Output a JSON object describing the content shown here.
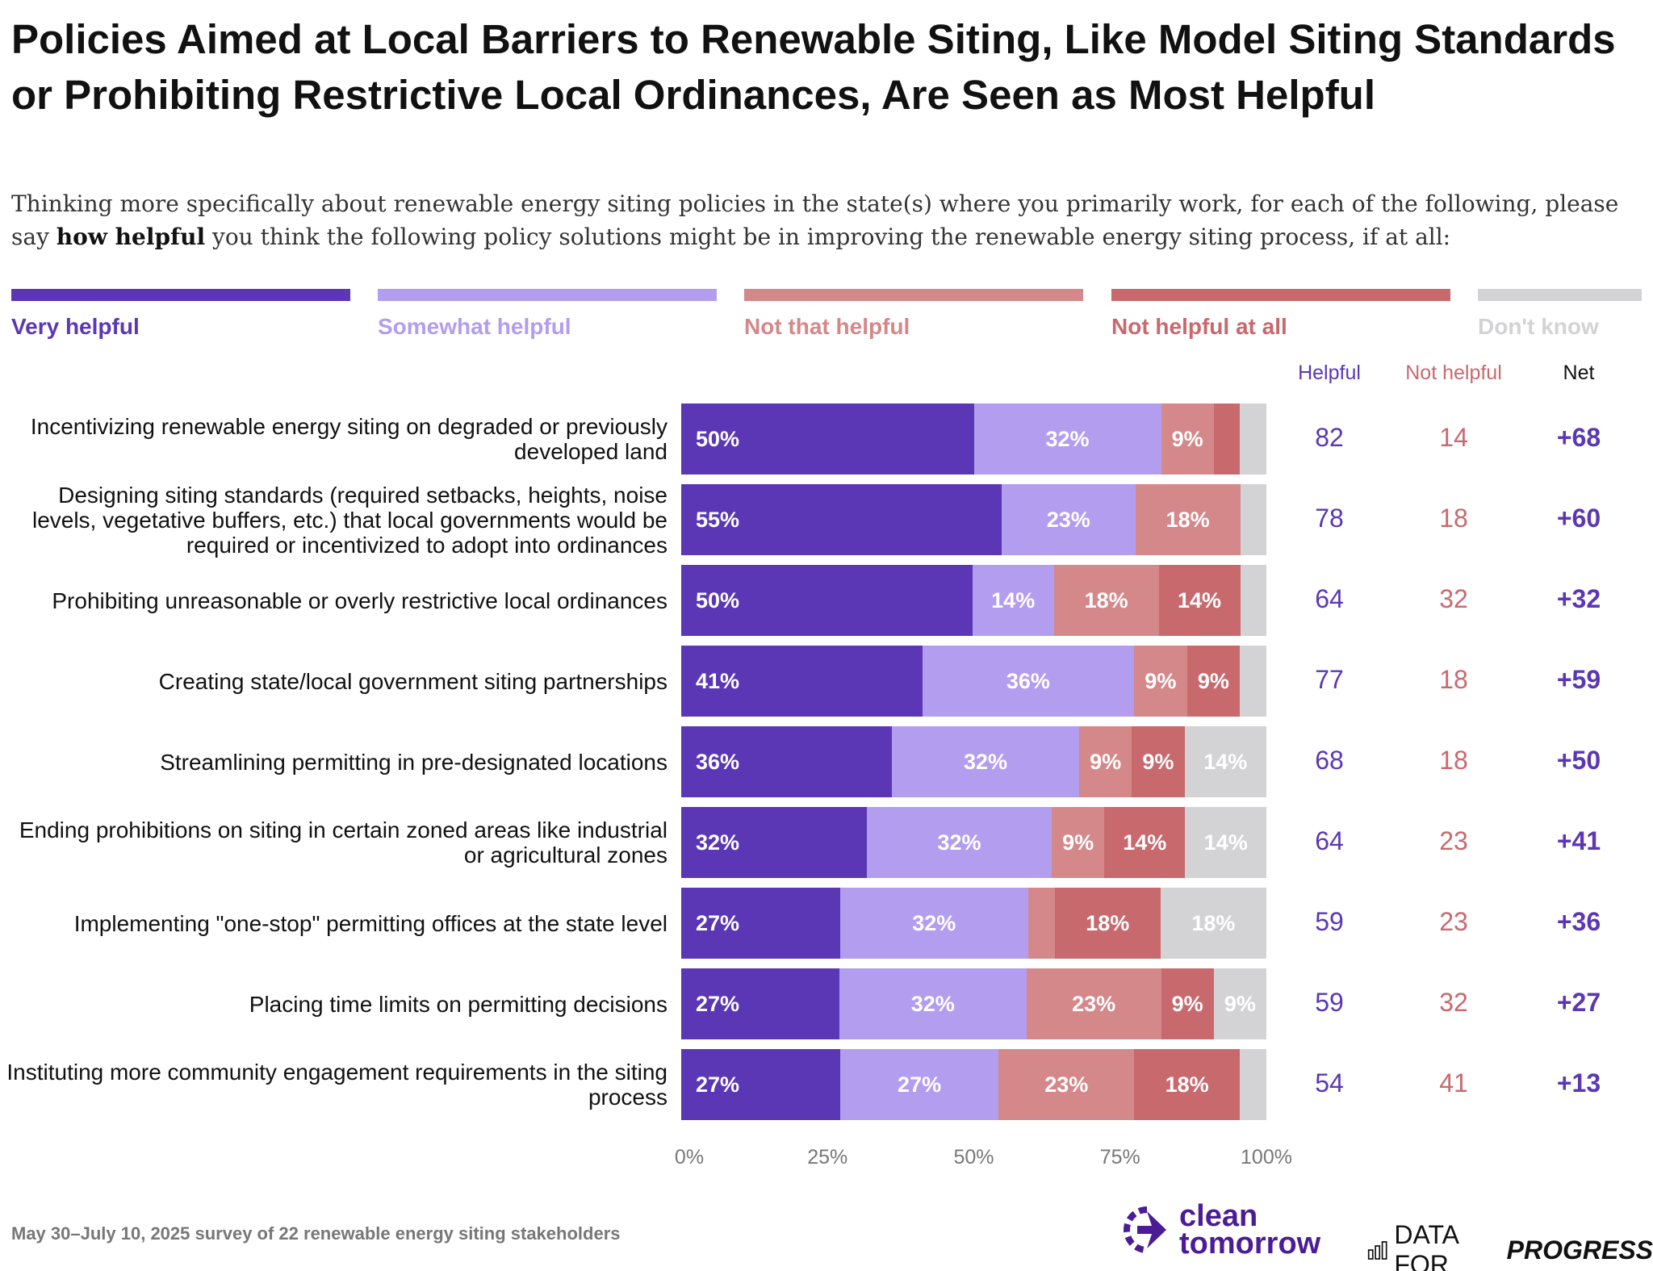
{
  "title": "Policies Aimed at Local Barriers to Renewable Siting, Like Model Siting Standards or Prohibiting Restrictive Local Ordinances, Are Seen as Most Helpful",
  "subtitle_pre": "Thinking more specifically about renewable energy siting policies in the state(s) where you primarily work, for each of the following, please say ",
  "subtitle_bold": "how helpful",
  "subtitle_post": " you think the following policy solutions might be in improving the renewable energy siting process, if at all:",
  "column_headers": {
    "helpful": "Helpful",
    "not_helpful": "Not helpful",
    "net": "Net"
  },
  "footer": "May 30–July 10, 2025 survey of 22 renewable energy siting stakeholders",
  "logos": {
    "clean_tomorrow_line1": "clean",
    "clean_tomorrow_line2": "tomorrow",
    "dfp_plain": "DATA FOR",
    "dfp_bold": "PROGRESS"
  },
  "colors": {
    "helpful_text": "#5B37B5",
    "not_helpful_text": "#C8696E",
    "net_text": "#5B37B5"
  },
  "chart_data": {
    "type": "bar",
    "orientation": "horizontal-stacked",
    "title": "Policies Aimed at Local Barriers to Renewable Siting, Like Model Siting Standards or Prohibiting Restrictive Local Ordinances, Are Seen as Most Helpful",
    "xlim": [
      0,
      100
    ],
    "x_ticks": [
      "0%",
      "25%",
      "50%",
      "75%",
      "100%"
    ],
    "legend_placement": "top",
    "series": [
      {
        "name": "Very helpful",
        "color": "#5B37B5"
      },
      {
        "name": "Somewhat helpful",
        "color": "#B39DEE"
      },
      {
        "name": "Not that helpful",
        "color": "#D4888A"
      },
      {
        "name": "Not helpful at all",
        "color": "#C8696E"
      },
      {
        "name": "Don't know",
        "color": "#D3D3D5"
      }
    ],
    "rows": [
      {
        "label": "Incentivizing renewable energy siting on degraded or previously developed land",
        "values": [
          50,
          32,
          9,
          4.5,
          4.5
        ],
        "labels": [
          "50%",
          "32%",
          "9%",
          "",
          ""
        ],
        "helpful": "82",
        "not_helpful": "14",
        "net": "+68"
      },
      {
        "label": "Designing siting standards (required setbacks, heights, noise levels, vegetative buffers, etc.) that local governments would be required or incentivized to adopt into ordinances",
        "values": [
          55,
          23,
          18,
          0,
          4.5
        ],
        "labels": [
          "55%",
          "23%",
          "18%",
          "",
          ""
        ],
        "helpful": "78",
        "not_helpful": "18",
        "net": "+60"
      },
      {
        "label": "Prohibiting unreasonable or overly restrictive local ordinances",
        "values": [
          50,
          14,
          18,
          14,
          4.5
        ],
        "labels": [
          "50%",
          "14%",
          "18%",
          "14%",
          ""
        ],
        "helpful": "64",
        "not_helpful": "32",
        "net": "+32"
      },
      {
        "label": "Creating state/local government siting partnerships",
        "values": [
          41,
          36,
          9,
          9,
          4.5
        ],
        "labels": [
          "41%",
          "36%",
          "9%",
          "9%",
          ""
        ],
        "helpful": "77",
        "not_helpful": "18",
        "net": "+59"
      },
      {
        "label": "Streamlining permitting in pre-designated locations",
        "values": [
          36,
          32,
          9,
          9,
          14
        ],
        "labels": [
          "36%",
          "32%",
          "9%",
          "9%",
          "14%"
        ],
        "helpful": "68",
        "not_helpful": "18",
        "net": "+50"
      },
      {
        "label": "Ending prohibitions on siting in certain zoned areas like industrial or agricultural zones",
        "values": [
          32,
          32,
          9,
          14,
          14
        ],
        "labels": [
          "32%",
          "32%",
          "9%",
          "14%",
          "14%"
        ],
        "helpful": "64",
        "not_helpful": "23",
        "net": "+41"
      },
      {
        "label": "Implementing \"one-stop\" permitting offices at the state level",
        "values": [
          27,
          32,
          4.5,
          18,
          18
        ],
        "labels": [
          "27%",
          "32%",
          "",
          "18%",
          "18%"
        ],
        "helpful": "59",
        "not_helpful": "23",
        "net": "+36"
      },
      {
        "label": "Placing time limits on permitting decisions",
        "values": [
          27,
          32,
          23,
          9,
          9
        ],
        "labels": [
          "27%",
          "32%",
          "23%",
          "9%",
          "9%"
        ],
        "helpful": "59",
        "not_helpful": "32",
        "net": "+27"
      },
      {
        "label": "Instituting more community engagement requirements in the siting process",
        "values": [
          27,
          27,
          23,
          18,
          4.5
        ],
        "labels": [
          "27%",
          "27%",
          "23%",
          "18%",
          ""
        ],
        "helpful": "54",
        "not_helpful": "41",
        "net": "+13"
      }
    ]
  }
}
